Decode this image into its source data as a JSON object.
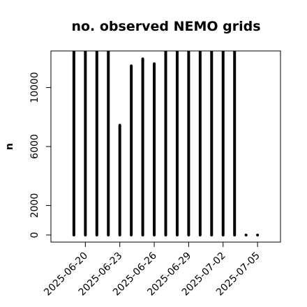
{
  "chart_data": {
    "type": "bar",
    "title": "no. observed NEMO grids",
    "y_label": "n",
    "x": [
      "2025-06-19",
      "2025-06-20",
      "2025-06-21",
      "2025-06-22",
      "2025-06-23",
      "2025-06-24",
      "2025-06-25",
      "2025-06-26",
      "2025-06-27",
      "2025-06-28",
      "2025-06-29",
      "2025-06-30",
      "2025-07-01",
      "2025-07-02",
      "2025-07-03",
      "2025-07-04",
      "2025-07-05"
    ],
    "values": [
      12500,
      12500,
      12500,
      12500,
      7440,
      11470,
      11940,
      11610,
      12500,
      12500,
      12500,
      12500,
      12500,
      12500,
      12500,
      0,
      0
    ],
    "color": "#000000",
    "xlim": [
      "2025-06-17",
      "2025-07-07"
    ],
    "xticks": [
      "2025-06-20",
      "2025-06-23",
      "2025-06-26",
      "2025-06-29",
      "2025-07-02",
      "2025-07-05"
    ],
    "ylim": [
      -480,
      12480
    ],
    "yticks": [
      0,
      2000,
      6000,
      10000
    ]
  }
}
